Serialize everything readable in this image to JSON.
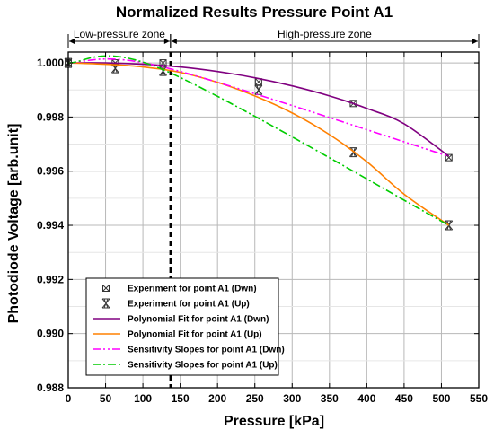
{
  "chart_data": {
    "type": "line",
    "title": "Normalized Results Pressure Point A1",
    "xlabel": "Pressure [kPa]",
    "ylabel": "Photodiode Voltage [arb.unit]",
    "xlim": [
      0,
      550
    ],
    "ylim": [
      0.988,
      1.0004
    ],
    "x_ticks": [
      0,
      50,
      100,
      150,
      200,
      250,
      300,
      350,
      400,
      450,
      500,
      550
    ],
    "y_ticks": [
      0.988,
      0.99,
      0.992,
      0.994,
      0.996,
      0.998,
      1.0
    ],
    "x_tick_labels": [
      "0",
      "50",
      "100",
      "150",
      "200",
      "250",
      "300",
      "350",
      "400",
      "450",
      "500",
      "550"
    ],
    "y_tick_labels": [
      "0.988",
      "0.990",
      "0.992",
      "0.994",
      "0.996",
      "0.998",
      "1.000"
    ],
    "grid": true,
    "legend_position": "bottom-left",
    "zones": [
      {
        "label": "Low-pressure zone",
        "from": 0,
        "to": 137
      },
      {
        "label": "High-pressure zone",
        "from": 137,
        "to": 550
      }
    ],
    "zone_divider_x": 137,
    "series": [
      {
        "name": "Experiment for point A1 (Dwn)",
        "kind": "markers",
        "marker": "boxed-x",
        "color": "#333333",
        "x": [
          0,
          63,
          127,
          255,
          382,
          510
        ],
        "y": [
          1.0,
          1.0,
          1.0,
          0.9993,
          0.9985,
          0.9965
        ]
      },
      {
        "name": "Experiment for point A1 (Up)",
        "kind": "markers",
        "marker": "double-x",
        "color": "#333333",
        "x": [
          0,
          63,
          127,
          255,
          382,
          510
        ],
        "y": [
          1.0,
          0.9998,
          0.9997,
          0.999,
          0.9967,
          0.994
        ]
      },
      {
        "name": "Polynomial Fit for point A1 (Dwn)",
        "kind": "line",
        "style": "solid",
        "color": "#800080",
        "x": [
          0,
          50,
          100,
          150,
          200,
          250,
          300,
          350,
          400,
          450,
          510
        ],
        "y": [
          1.0,
          1.0,
          0.99995,
          0.99985,
          0.99968,
          0.99945,
          0.99915,
          0.99878,
          0.99832,
          0.99775,
          0.99655
        ]
      },
      {
        "name": "Polynomial Fit for point A1 (Up)",
        "kind": "line",
        "style": "solid",
        "color": "#ff8000",
        "x": [
          0,
          50,
          100,
          150,
          200,
          250,
          300,
          350,
          400,
          450,
          510
        ],
        "y": [
          1.0,
          0.99995,
          0.99985,
          0.99965,
          0.99928,
          0.99878,
          0.99815,
          0.99735,
          0.99635,
          0.99515,
          0.994
        ]
      },
      {
        "name": "Sensitivity Slopes for point A1 (Dwn)",
        "kind": "line",
        "style": "dash-dot-dot",
        "color": "#ff00ff",
        "x": [
          0,
          127,
          510
        ],
        "y": [
          1.0,
          0.99985,
          0.99655
        ]
      },
      {
        "name": "Sensitivity Slopes for point A1 (Up)",
        "kind": "line",
        "style": "dash-dot",
        "color": "#00cc00",
        "x": [
          0,
          127,
          510
        ],
        "y": [
          1.0,
          0.99975,
          0.994
        ]
      }
    ]
  }
}
